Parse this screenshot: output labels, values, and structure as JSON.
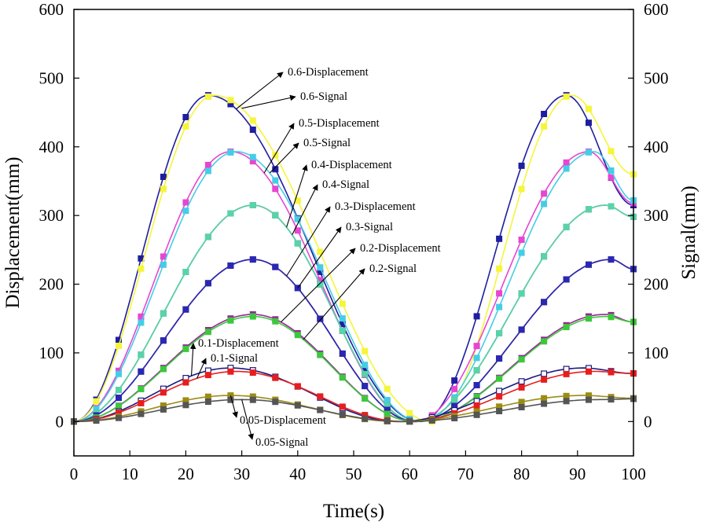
{
  "chart_data": {
    "type": "line",
    "title": "",
    "xlabel": "Time(s)",
    "ylabel": "Displacement(mm)",
    "y2label": "Signal(mm)",
    "xlim": [
      0,
      100
    ],
    "ylim": [
      -50,
      600
    ],
    "y2lim": [
      -50,
      600
    ],
    "xticks": [
      0,
      10,
      20,
      30,
      40,
      50,
      60,
      70,
      80,
      90,
      100
    ],
    "yticks": [
      0,
      100,
      200,
      300,
      400,
      500,
      600
    ],
    "grid": false,
    "legend": "none",
    "marker": "square",
    "series": [
      {
        "group": "0.6",
        "kind": "displacement",
        "color": "#1e1ea0",
        "amp": 475,
        "peak1": 24,
        "peak2": 88,
        "trough": 62,
        "end": 315
      },
      {
        "group": "0.6",
        "kind": "signal",
        "color": "#f5f53c",
        "amp": 475,
        "peak1": 25,
        "peak2": 89,
        "trough": 64,
        "end": 360
      },
      {
        "group": "0.5",
        "kind": "displacement",
        "color": "#e646d2",
        "amp": 393,
        "peak1": 28,
        "peak2": 92,
        "trough": 61,
        "end": 318
      },
      {
        "group": "0.5",
        "kind": "signal",
        "color": "#46cde6",
        "amp": 393,
        "peak1": 29,
        "peak2": 93,
        "trough": 62,
        "end": 322
      },
      {
        "group": "0.4",
        "kind": "displacement",
        "color": "#147864",
        "amp": 315,
        "peak1": 32,
        "peak2": 95,
        "trough": 61,
        "end": 298
      },
      {
        "group": "0.4",
        "kind": "signal",
        "color": "#5ad2aa",
        "amp": 315,
        "peak1": 32,
        "peak2": 95,
        "trough": 61,
        "end": 298
      },
      {
        "group": "0.3",
        "kind": "displacement",
        "color": "#8c1e28",
        "amp": 236,
        "peak1": 32,
        "peak2": 96,
        "trough": 61,
        "end": 222
      },
      {
        "group": "0.3",
        "kind": "signal",
        "color": "#2828b4",
        "amp": 236,
        "peak1": 32,
        "peak2": 96,
        "trough": 61,
        "end": 222
      },
      {
        "group": "0.2",
        "kind": "displacement",
        "color": "#962896",
        "amp": 156,
        "peak1": 32,
        "peak2": 95,
        "trough": 61,
        "end": 145
      },
      {
        "group": "0.2",
        "kind": "signal",
        "color": "#3cc83c",
        "amp": 153,
        "peak1": 32,
        "peak2": 95,
        "trough": 61,
        "end": 145
      },
      {
        "group": "0.1",
        "kind": "displacement",
        "color": "#1a1a80",
        "amp": 78,
        "peak1": 28,
        "peak2": 91,
        "trough": 58,
        "end": 70,
        "hollow": true
      },
      {
        "group": "0.1",
        "kind": "signal",
        "color": "#e61e1e",
        "amp": 73,
        "peak1": 29,
        "peak2": 93,
        "trough": 59,
        "end": 70
      },
      {
        "group": "0.05",
        "kind": "displacement",
        "color": "#9b8c14",
        "amp": 38,
        "peak1": 28,
        "peak2": 91,
        "trough": 58,
        "end": 34
      },
      {
        "group": "0.05",
        "kind": "signal",
        "color": "#555555",
        "amp": 32,
        "peak1": 30,
        "peak2": 94,
        "trough": 59,
        "end": 33
      }
    ],
    "annotations": [
      {
        "text": "0.6-Displacement",
        "series": 0,
        "at": 29
      },
      {
        "text": "0.6-Signal",
        "series": 1,
        "at": 30
      },
      {
        "text": "0.5-Displacement",
        "series": 2,
        "at": 34
      },
      {
        "text": "0.5-Signal",
        "series": 3,
        "at": 35
      },
      {
        "text": "0.4-Displacement",
        "series": 4,
        "at": 38
      },
      {
        "text": "0.4-Signal",
        "series": 5,
        "at": 39
      },
      {
        "text": "0.3-Displacement",
        "series": 6,
        "at": 38
      },
      {
        "text": "0.3-Signal",
        "series": 7,
        "at": 40
      },
      {
        "text": "0.2-Displacement",
        "series": 8,
        "at": 37
      },
      {
        "text": "0.2-Signal",
        "series": 9,
        "at": 41
      },
      {
        "text": "0.1-Displacement",
        "series": 10,
        "at": 21
      },
      {
        "text": "0.1-Signal",
        "series": 11,
        "at": 22
      },
      {
        "text": "0.05-Displacement",
        "series": 12,
        "at": 28
      },
      {
        "text": "0.05-Signal",
        "series": 13,
        "at": 30
      }
    ]
  }
}
